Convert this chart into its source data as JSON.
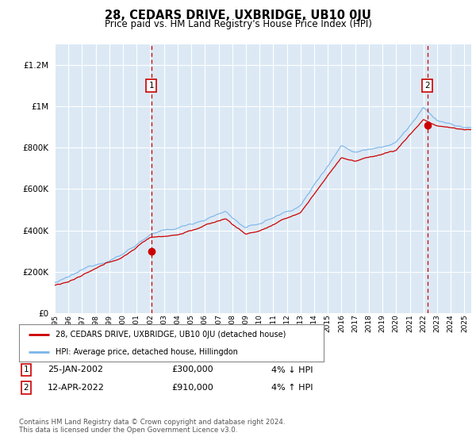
{
  "title": "28, CEDARS DRIVE, UXBRIDGE, UB10 0JU",
  "subtitle": "Price paid vs. HM Land Registry's House Price Index (HPI)",
  "ylim": [
    0,
    1300000
  ],
  "yticks": [
    0,
    200000,
    400000,
    600000,
    800000,
    1000000,
    1200000
  ],
  "background_color": "#ffffff",
  "plot_bg_color": "#dce9f5",
  "grid_color": "#ffffff",
  "hpi_color": "#7ab4e8",
  "price_color": "#cc0000",
  "marker1_date": 2002.07,
  "marker1_price": 300000,
  "marker1_label": "1",
  "marker1_display": "25-JAN-2002",
  "marker1_amount": "£300,000",
  "marker1_hpi": "4% ↓ HPI",
  "marker2_date": 2022.28,
  "marker2_price": 910000,
  "marker2_label": "2",
  "marker2_display": "12-APR-2022",
  "marker2_amount": "£910,000",
  "marker2_hpi": "4% ↑ HPI",
  "legend_line1": "28, CEDARS DRIVE, UXBRIDGE, UB10 0JU (detached house)",
  "legend_line2": "HPI: Average price, detached house, Hillingdon",
  "footer": "Contains HM Land Registry data © Crown copyright and database right 2024.\nThis data is licensed under the Open Government Licence v3.0.",
  "xstart": 1995,
  "xend": 2025.5
}
